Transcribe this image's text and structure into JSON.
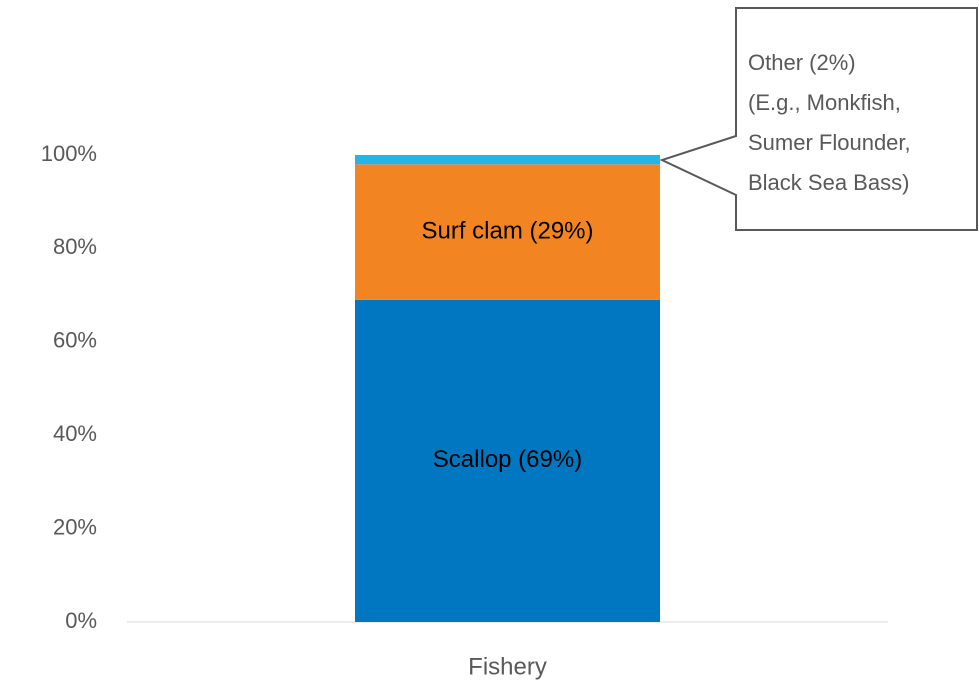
{
  "chart_data": {
    "type": "stacked_bar",
    "categories": [
      "Fishery"
    ],
    "series": [
      {
        "name": "Scallop",
        "color": "#0077c0",
        "values": [
          69
        ],
        "value_labels": [
          "Scallop (69%)"
        ]
      },
      {
        "name": "Surf clam",
        "color": "#f28522",
        "values": [
          29
        ],
        "value_labels": [
          "Surf clam (29%)"
        ]
      },
      {
        "name": "Other",
        "color": "#22b5e8",
        "values": [
          2
        ],
        "value_labels": [
          "Other (2%)"
        ]
      }
    ],
    "annotation": [
      "(E.g., Monkfish,",
      "Sumer Flounder,",
      "Black Sea Bass)"
    ],
    "ylim": [
      0,
      100
    ],
    "yticks": [
      {
        "value": 0,
        "label": "0%"
      },
      {
        "value": 20,
        "label": "20%"
      },
      {
        "value": 40,
        "label": "40%"
      },
      {
        "value": 60,
        "label": "60%"
      },
      {
        "value": 80,
        "label": "80%"
      },
      {
        "value": 100,
        "label": "100%"
      }
    ],
    "grid": false
  }
}
